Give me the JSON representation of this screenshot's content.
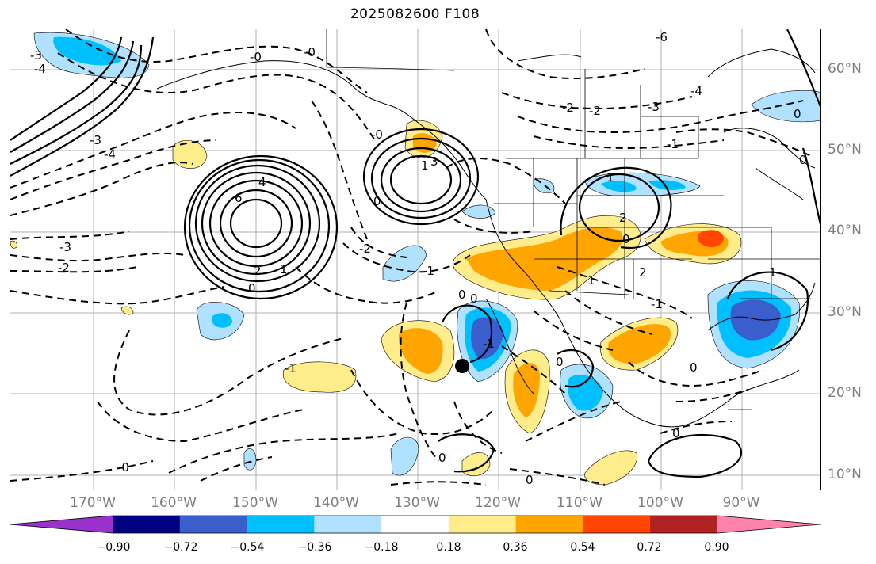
{
  "title": "2025082600 F108",
  "lat_labels": [
    "60°N",
    "50°N",
    "40°N",
    "30°N",
    "20°N",
    "10°N"
  ],
  "lon_labels": [
    "170°W",
    "160°W",
    "150°W",
    "140°W",
    "130°W",
    "120°W",
    "110°W",
    "100°W",
    "90°W"
  ],
  "colorbar": {
    "colors": [
      "#9932cc",
      "#000080",
      "#3a5fcd",
      "#00bfff",
      "#b0e2ff",
      "#ffffff",
      "#ffec8b",
      "#ffa500",
      "#ff4500",
      "#b22222",
      "#ff82ab"
    ],
    "ticks": [
      "−0.90",
      "−0.72",
      "−0.54",
      "−0.36",
      "−0.18",
      "0.18",
      "0.36",
      "0.54",
      "0.72",
      "0.90"
    ]
  },
  "contour_labels": {
    "alaska_gulf": [
      "-0",
      "-2",
      "-2",
      "-1"
    ],
    "northeast_pacific": [
      "-3",
      "-4",
      "-3",
      "-4"
    ],
    "central_pacific": [
      "6",
      "4",
      "2",
      "1",
      "0",
      "-1",
      "-2",
      "-3",
      "-0"
    ],
    "west_coast": [
      "3",
      "1",
      "0",
      "-0",
      "-2",
      "-1",
      "0"
    ],
    "canada": [
      "-6",
      "-4",
      "-3",
      "-2",
      "-2",
      "-1",
      "1",
      "-1"
    ],
    "interior": [
      "1",
      "2",
      "0",
      "1",
      "-1",
      "2",
      "-2",
      "-1"
    ],
    "south": [
      "1",
      "0",
      "-1",
      "0",
      "0",
      "-0",
      "0",
      "-0",
      "0"
    ]
  },
  "marker": "storm-center"
}
